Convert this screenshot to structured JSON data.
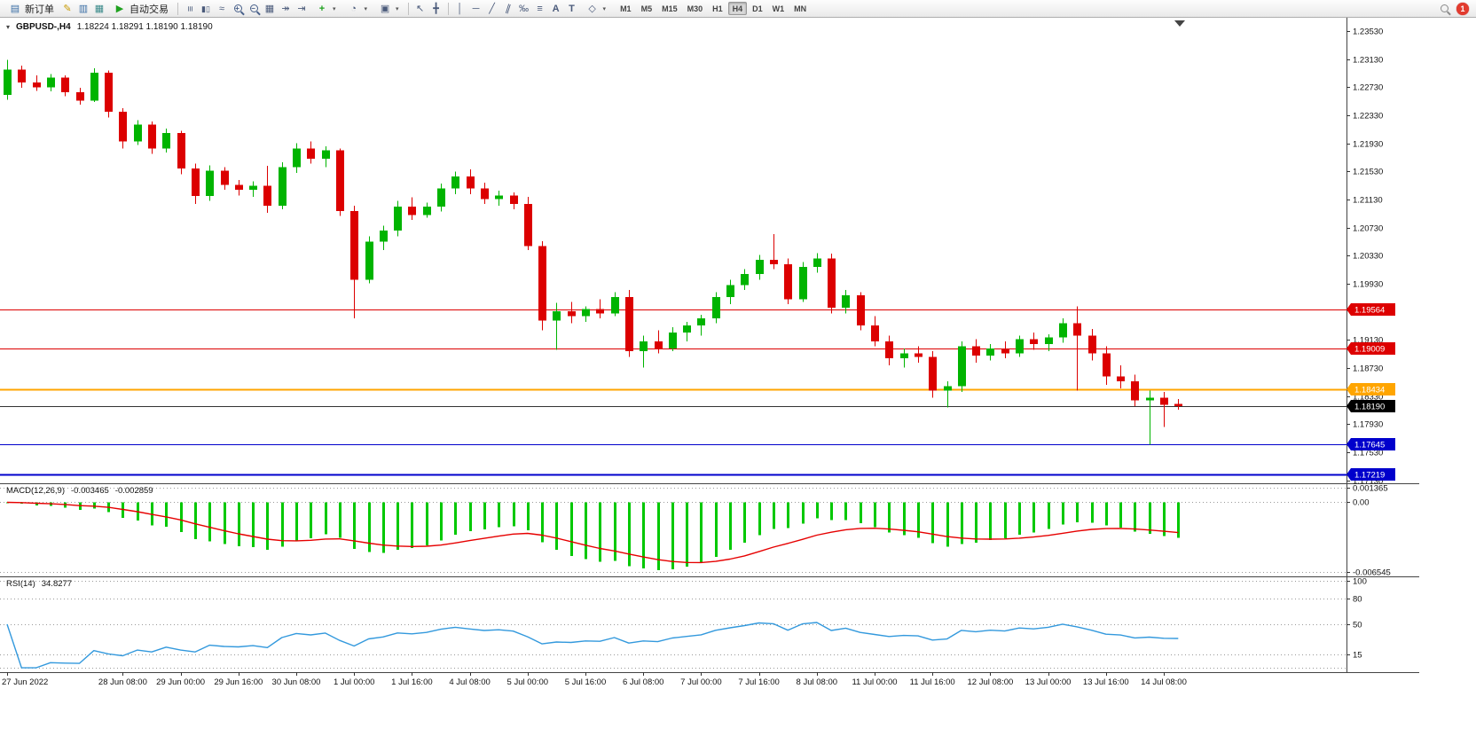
{
  "toolbar": {
    "new_order_label": "新订单",
    "autotrade_label": "自动交易",
    "timeframes": [
      "M1",
      "M5",
      "M15",
      "M30",
      "H1",
      "H4",
      "D1",
      "W1",
      "MN"
    ],
    "active_timeframe": "H4",
    "notification_count": "1",
    "icon_glyphs": {
      "new_order": "▤",
      "metaeditor": "✎",
      "market_watch": "▥",
      "navigator": "▦",
      "autotrade_play": "▶",
      "chart_bars": "≡",
      "chart_candles": "▮▯",
      "chart_line": "≈",
      "zoom_in": "+",
      "zoom_out": "−",
      "tile": "▦",
      "auto_scroll": "↠",
      "chart_shift": "⇥",
      "indicators_plus": "+",
      "clock": "◔",
      "templates": "▣",
      "cursor": "↖",
      "crosshair": "╋",
      "vline": "│",
      "hline": "─",
      "trendline": "╱",
      "channel": "∥",
      "fibonacci": "‰",
      "levels": "≡",
      "text_tool": "A",
      "label_tool": "T",
      "shapes": "◇",
      "caret": "▾",
      "chart_menu": "▾"
    }
  },
  "chart_data": {
    "type": "candlestick",
    "title": "GBPUSD-,H4",
    "ohlc_text": "1.18224 1.18291 1.18190 1.18190",
    "bull_color": "#00B400",
    "bear_color": "#DC0000",
    "price_axis": {
      "ticks": [
        "1.23530",
        "1.23130",
        "1.22730",
        "1.22330",
        "1.21930",
        "1.21530",
        "1.21130",
        "1.20730",
        "1.20330",
        "1.19930",
        "1.19130",
        "1.18730",
        "1.18330",
        "1.17930",
        "1.17530",
        "1.17130"
      ]
    },
    "ylim": [
      1.1709,
      1.2372
    ],
    "levels": [
      {
        "price": 1.19564,
        "label": "1.19564",
        "color": "#DD0000",
        "width": 1
      },
      {
        "price": 1.19009,
        "label": "1.19009",
        "color": "#DD0000",
        "width": 1
      },
      {
        "price": 1.18434,
        "label": "1.18434",
        "color": "#FFA500",
        "width": 2
      },
      {
        "price": 1.17645,
        "label": "1.17645",
        "color": "#0000CC",
        "width": 1
      },
      {
        "price": 1.17219,
        "label": "1.17219",
        "color": "#0000CC",
        "width": 2
      }
    ],
    "bid": {
      "price": 1.1819,
      "label": "1.18190",
      "color": "#000000"
    },
    "time_labels": [
      {
        "i": 0,
        "t": "27 Jun 2022"
      },
      {
        "i": 8,
        "t": "28 Jun 08:00"
      },
      {
        "i": 12,
        "t": "29 Jun 00:00"
      },
      {
        "i": 16,
        "t": "29 Jun 16:00"
      },
      {
        "i": 20,
        "t": "30 Jun 08:00"
      },
      {
        "i": 24,
        "t": "1 Jul 00:00"
      },
      {
        "i": 28,
        "t": "1 Jul 16:00"
      },
      {
        "i": 32,
        "t": "4 Jul 08:00"
      },
      {
        "i": 36,
        "t": "5 Jul 00:00"
      },
      {
        "i": 40,
        "t": "5 Jul 16:00"
      },
      {
        "i": 44,
        "t": "6 Jul 08:00"
      },
      {
        "i": 48,
        "t": "7 Jul 00:00"
      },
      {
        "i": 52,
        "t": "7 Jul 16:00"
      },
      {
        "i": 56,
        "t": "8 Jul 08:00"
      },
      {
        "i": 60,
        "t": "11 Jul 00:00"
      },
      {
        "i": 64,
        "t": "11 Jul 16:00"
      },
      {
        "i": 68,
        "t": "12 Jul 08:00"
      },
      {
        "i": 72,
        "t": "13 Jul 00:00"
      },
      {
        "i": 76,
        "t": "13 Jul 16:00"
      },
      {
        "i": 80,
        "t": "14 Jul 08:00"
      }
    ],
    "candles": [
      [
        1.2262,
        1.2312,
        1.2255,
        1.2298
      ],
      [
        1.2298,
        1.2304,
        1.2272,
        1.228
      ],
      [
        1.228,
        1.229,
        1.2268,
        1.2273
      ],
      [
        1.2273,
        1.2292,
        1.2267,
        1.2287
      ],
      [
        1.2287,
        1.229,
        1.226,
        1.2266
      ],
      [
        1.2266,
        1.2272,
        1.2248,
        1.2254
      ],
      [
        1.2254,
        1.23,
        1.2252,
        1.2294
      ],
      [
        1.2294,
        1.2297,
        1.223,
        1.2238
      ],
      [
        1.2238,
        1.2243,
        1.2186,
        1.2196
      ],
      [
        1.2196,
        1.2226,
        1.2191,
        1.222
      ],
      [
        1.222,
        1.2224,
        1.2178,
        1.2186
      ],
      [
        1.2186,
        1.2214,
        1.218,
        1.2208
      ],
      [
        1.2208,
        1.2211,
        1.2149,
        1.2157
      ],
      [
        1.2157,
        1.2164,
        1.2107,
        1.2118
      ],
      [
        1.2118,
        1.2162,
        1.2111,
        1.2154
      ],
      [
        1.2154,
        1.2159,
        1.2127,
        1.2134
      ],
      [
        1.2134,
        1.2141,
        1.2119,
        1.2127
      ],
      [
        1.2127,
        1.2139,
        1.2117,
        1.2133
      ],
      [
        1.2133,
        1.2161,
        1.2094,
        1.2104
      ],
      [
        1.2104,
        1.2166,
        1.2099,
        1.2159
      ],
      [
        1.2159,
        1.2193,
        1.2151,
        1.2186
      ],
      [
        1.2186,
        1.2196,
        1.2164,
        1.2171
      ],
      [
        1.2171,
        1.2189,
        1.2159,
        1.2183
      ],
      [
        1.2183,
        1.2186,
        1.209,
        1.2097
      ],
      [
        1.2097,
        1.2104,
        1.1944,
        1.1999
      ],
      [
        1.1999,
        1.2061,
        1.1994,
        1.2053
      ],
      [
        1.2053,
        1.2076,
        1.2041,
        1.2069
      ],
      [
        1.2069,
        1.2111,
        1.2061,
        1.2103
      ],
      [
        1.2103,
        1.2116,
        1.2084,
        1.2091
      ],
      [
        1.2091,
        1.2109,
        1.2087,
        1.2103
      ],
      [
        1.2103,
        1.2136,
        1.2096,
        1.2129
      ],
      [
        1.2129,
        1.2153,
        1.2121,
        1.2146
      ],
      [
        1.2146,
        1.2156,
        1.2121,
        1.2129
      ],
      [
        1.2129,
        1.2137,
        1.2107,
        1.2114
      ],
      [
        1.2114,
        1.2126,
        1.2104,
        1.2119
      ],
      [
        1.2119,
        1.2123,
        1.2099,
        1.2107
      ],
      [
        1.2107,
        1.2117,
        1.2041,
        1.2047
      ],
      [
        1.2047,
        1.2054,
        1.1927,
        1.1941
      ],
      [
        1.1941,
        1.1966,
        1.1899,
        1.1954
      ],
      [
        1.1954,
        1.1967,
        1.1937,
        1.1947
      ],
      [
        1.1947,
        1.1961,
        1.1939,
        1.1957
      ],
      [
        1.1957,
        1.1971,
        1.1944,
        1.1951
      ],
      [
        1.1951,
        1.1981,
        1.1947,
        1.1974
      ],
      [
        1.1974,
        1.1984,
        1.1889,
        1.1897
      ],
      [
        1.1897,
        1.1919,
        1.1874,
        1.1911
      ],
      [
        1.1911,
        1.1927,
        1.1894,
        1.1901
      ],
      [
        1.1901,
        1.1931,
        1.1897,
        1.1924
      ],
      [
        1.1924,
        1.1939,
        1.1911,
        1.1934
      ],
      [
        1.1934,
        1.1949,
        1.1919,
        1.1944
      ],
      [
        1.1944,
        1.1981,
        1.1937,
        1.1974
      ],
      [
        1.1974,
        1.1999,
        1.1964,
        1.1991
      ],
      [
        1.1991,
        1.2014,
        1.1984,
        1.2007
      ],
      [
        1.2007,
        1.2034,
        1.1999,
        1.2027
      ],
      [
        1.2027,
        1.2064,
        1.2014,
        1.2021
      ],
      [
        1.2021,
        1.2029,
        1.1964,
        1.1971
      ],
      [
        1.1971,
        1.2024,
        1.1967,
        1.2017
      ],
      [
        1.2017,
        1.2037,
        1.2009,
        1.2029
      ],
      [
        1.2029,
        1.2036,
        1.1951,
        1.1959
      ],
      [
        1.1959,
        1.1984,
        1.1951,
        1.1977
      ],
      [
        1.1977,
        1.1981,
        1.1927,
        1.1934
      ],
      [
        1.1934,
        1.1947,
        1.1904,
        1.1911
      ],
      [
        1.1911,
        1.1919,
        1.1877,
        1.1887
      ],
      [
        1.1887,
        1.1901,
        1.1874,
        1.1894
      ],
      [
        1.1894,
        1.1904,
        1.1881,
        1.1889
      ],
      [
        1.1889,
        1.1897,
        1.1831,
        1.1841
      ],
      [
        1.1841,
        1.1854,
        1.1817,
        1.1847
      ],
      [
        1.1847,
        1.1911,
        1.1839,
        1.1904
      ],
      [
        1.1904,
        1.1914,
        1.1881,
        1.1891
      ],
      [
        1.1891,
        1.1907,
        1.1884,
        1.1901
      ],
      [
        1.1901,
        1.1911,
        1.1887,
        1.1894
      ],
      [
        1.1894,
        1.1919,
        1.1889,
        1.1914
      ],
      [
        1.1914,
        1.1924,
        1.1899,
        1.1907
      ],
      [
        1.1907,
        1.1921,
        1.1897,
        1.1917
      ],
      [
        1.1917,
        1.1944,
        1.1909,
        1.1937
      ],
      [
        1.1937,
        1.1961,
        1.1841,
        1.1919
      ],
      [
        1.1919,
        1.1929,
        1.1884,
        1.1894
      ],
      [
        1.1894,
        1.1904,
        1.1849,
        1.1861
      ],
      [
        1.1861,
        1.1877,
        1.1844,
        1.1854
      ],
      [
        1.1854,
        1.1864,
        1.1819,
        1.1827
      ],
      [
        1.1827,
        1.1841,
        1.1764,
        1.1831
      ],
      [
        1.1831,
        1.1839,
        1.1789,
        1.1821
      ],
      [
        1.1822,
        1.1829,
        1.1814,
        1.1819
      ]
    ],
    "macd": {
      "label": "MACD(12,26,9)",
      "value": "-0.003465",
      "signal_value": "-0.002859",
      "params": {
        "fast": 12,
        "slow": 26,
        "signal": 9
      },
      "axis_labels": [
        "0.001365",
        "0.00",
        "-0.006545"
      ],
      "axis_values": [
        0.001365,
        0,
        -0.006545
      ],
      "hist_color": "#00C800",
      "signal_color": "#E60000",
      "ylim": [
        -0.007,
        0.0018
      ]
    },
    "rsi": {
      "label": "RSI(14)",
      "value": "34.8277",
      "period": 14,
      "axis_labels": [
        "100",
        "80",
        "50",
        "15"
      ],
      "axis_values": [
        100,
        80,
        50,
        15
      ],
      "grid_values": [
        100,
        80,
        50,
        15,
        0
      ],
      "line_color": "#3399DD",
      "ylim": [
        0,
        100
      ]
    }
  }
}
